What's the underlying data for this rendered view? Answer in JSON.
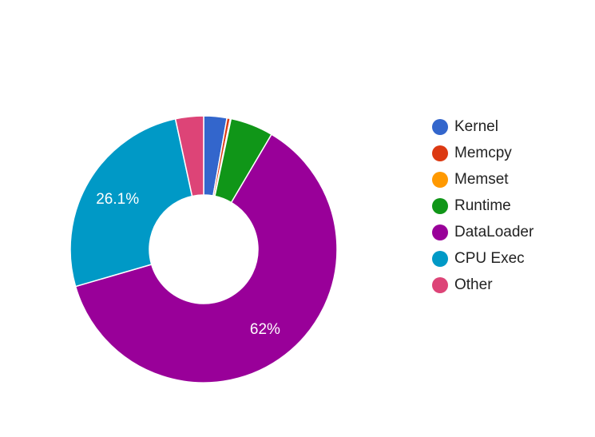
{
  "chart_data": {
    "type": "pie",
    "donut": true,
    "legend_position": "right",
    "slices": [
      {
        "name": "Kernel",
        "value": 2.8,
        "color": "#3366cc",
        "label": ""
      },
      {
        "name": "Memcpy",
        "value": 0.4,
        "color": "#dc3912",
        "label": ""
      },
      {
        "name": "Memset",
        "value": 0.1,
        "color": "#ff9900",
        "label": ""
      },
      {
        "name": "Runtime",
        "value": 5.2,
        "color": "#109618",
        "label": ""
      },
      {
        "name": "DataLoader",
        "value": 62.0,
        "color": "#990099",
        "label": "62%"
      },
      {
        "name": "CPU Exec",
        "value": 26.1,
        "color": "#0099c6",
        "label": "26.1%"
      },
      {
        "name": "Other",
        "value": 3.4,
        "color": "#dd4477",
        "label": ""
      }
    ]
  }
}
